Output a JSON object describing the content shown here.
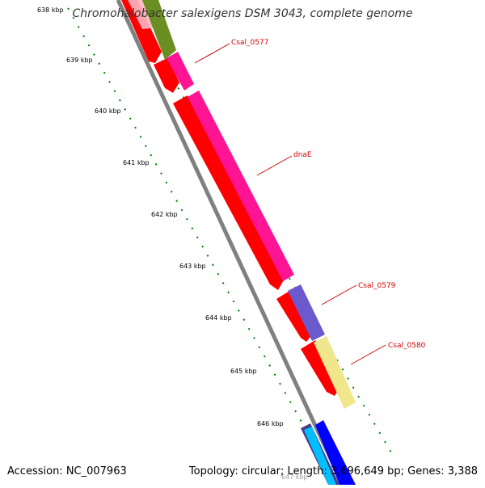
{
  "title": "Chromohalobacter salexigens DSM 3043, complete genome",
  "footer": {
    "accession": "Accession: NC_007963",
    "stats": "Topology: circular; Length: 3,696,649 bp; Genes: 3,388"
  },
  "ticks": [
    "638 kbp",
    "639 kbp",
    "640 kbp",
    "641 kbp",
    "642 kbp",
    "643 kbp",
    "644 kbp",
    "645 kbp",
    "646 kbp",
    "647 kbp"
  ],
  "gene_labels": [
    "Csal_0577",
    "dnaE",
    "Csal_0579",
    "Csal_0580"
  ],
  "colors": {
    "red_gene": "#ff0000",
    "pink_gene": "#ff1493",
    "olive_gene": "#6b8e23",
    "purple_gene": "#6a5acd",
    "yellow_gene": "#f0e68c",
    "blue_gene": "#0000ff",
    "cyan_gene": "#00bfff",
    "backbone": "#808080",
    "ruler": "#008000",
    "label": "#d00000"
  }
}
